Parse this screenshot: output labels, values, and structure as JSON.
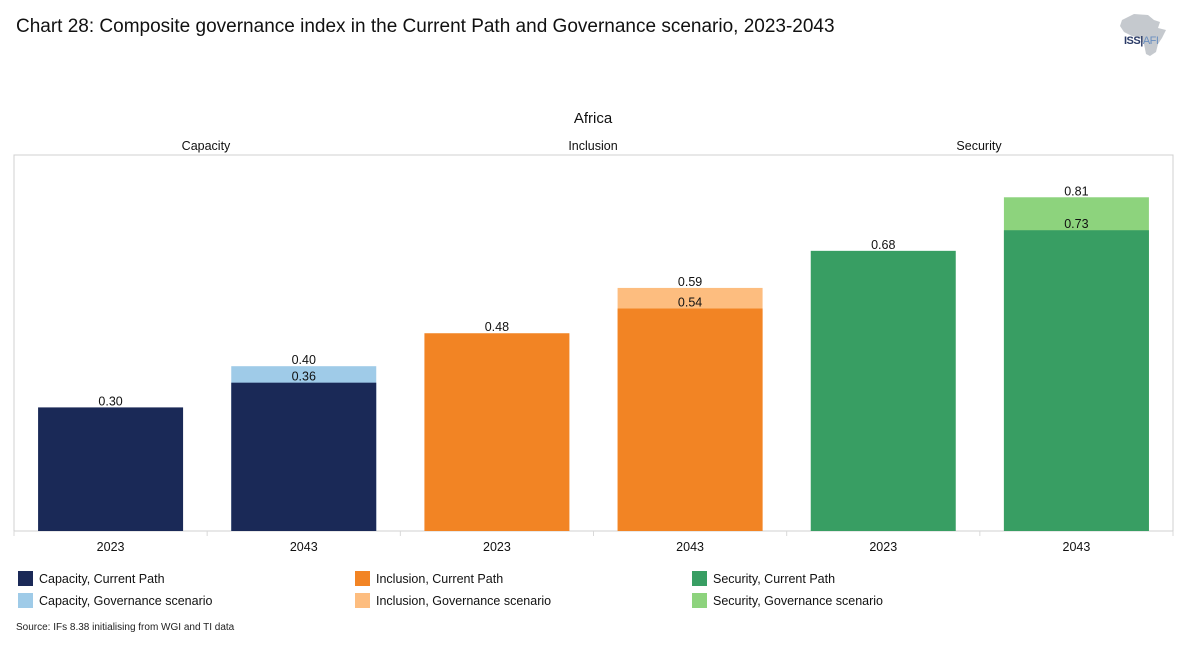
{
  "title": "Chart 28: Composite governance index in the Current Path and Governance scenario, 2023-2043",
  "logo": {
    "icon": "africa-map-icon",
    "primary": "ISS",
    "secondary": "AFI"
  },
  "source": "Source: IFs 8.38 initialising from WGI and TI data",
  "chart_data": {
    "type": "bar",
    "stacked": "overlay",
    "title": "Africa",
    "xlabel": "",
    "ylabel": "",
    "ylim": [
      0,
      1
    ],
    "grid": false,
    "legend_position": "bottom",
    "groups": [
      "Capacity",
      "Inclusion",
      "Security"
    ],
    "categories": [
      "2023",
      "2043",
      "2023",
      "2043",
      "2023",
      "2043"
    ],
    "bars": [
      {
        "group": "Capacity",
        "year": "2023",
        "current_path": 0.3,
        "governance_scenario": null,
        "current_color": "#1a2957",
        "scenario_color": "#9fcbe8"
      },
      {
        "group": "Capacity",
        "year": "2043",
        "current_path": 0.36,
        "governance_scenario": 0.4,
        "current_color": "#1a2957",
        "scenario_color": "#9fcbe8"
      },
      {
        "group": "Inclusion",
        "year": "2023",
        "current_path": 0.48,
        "governance_scenario": null,
        "current_color": "#f28424",
        "scenario_color": "#fdbd7f"
      },
      {
        "group": "Inclusion",
        "year": "2043",
        "current_path": 0.54,
        "governance_scenario": 0.59,
        "current_color": "#f28424",
        "scenario_color": "#fdbd7f"
      },
      {
        "group": "Security",
        "year": "2023",
        "current_path": 0.68,
        "governance_scenario": null,
        "current_color": "#389e63",
        "scenario_color": "#8dd37d"
      },
      {
        "group": "Security",
        "year": "2043",
        "current_path": 0.73,
        "governance_scenario": 0.81,
        "current_color": "#389e63",
        "scenario_color": "#8dd37d"
      }
    ],
    "labels": {
      "bar_0_current": "0.30",
      "bar_1_current": "0.36",
      "bar_1_scenario": "0.40",
      "bar_2_current": "0.48",
      "bar_3_current": "0.54",
      "bar_3_scenario": "0.59",
      "bar_4_current": "0.68",
      "bar_5_current": "0.73",
      "bar_5_scenario": "0.81"
    },
    "legend": [
      {
        "label": "Capacity, Current Path",
        "color": "#1a2957"
      },
      {
        "label": "Capacity, Governance scenario",
        "color": "#9fcbe8"
      },
      {
        "label": "Inclusion, Current Path",
        "color": "#f28424"
      },
      {
        "label": "Inclusion, Governance scenario",
        "color": "#fdbd7f"
      },
      {
        "label": "Security, Current Path",
        "color": "#389e63"
      },
      {
        "label": "Security, Governance scenario",
        "color": "#8dd37d"
      }
    ]
  }
}
